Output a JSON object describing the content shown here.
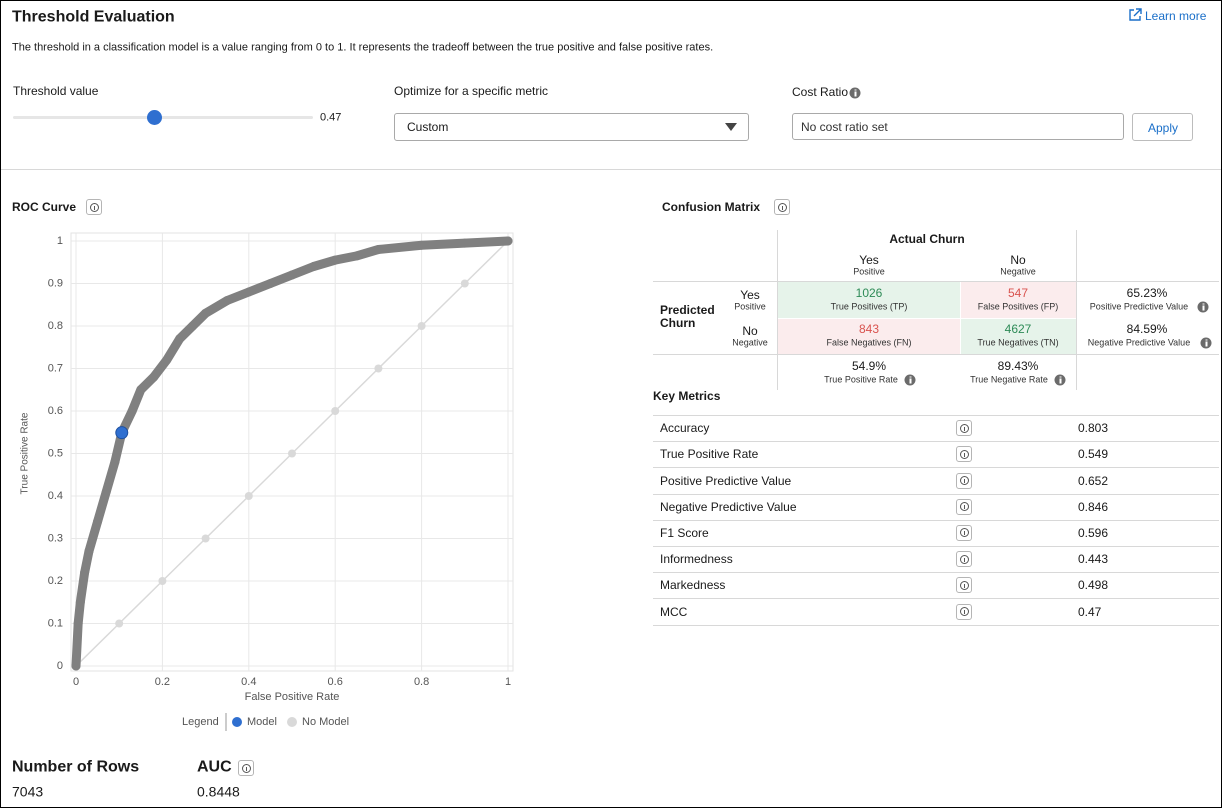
{
  "header": {
    "title": "Threshold Evaluation",
    "link": "Learn more",
    "description": "The threshold in a classification model is a value ranging from 0 to 1. It represents the tradeoff between the true positive and false positive rates."
  },
  "controls": {
    "threshold_label": "Threshold value",
    "threshold_value": 0.47,
    "slider_range": [
      0,
      1
    ],
    "metric_label": "Optimize for a specific metric",
    "metric_selected": "Custom",
    "cost_ratio_label": "Cost Ratio",
    "cost_ratio_placeholder": "No cost ratio set",
    "apply_button": "Apply"
  },
  "chart_data": {
    "type": "scatter",
    "title": "ROC Curve",
    "xlabel": "False Positive Rate",
    "ylabel": "True Positive Rate",
    "xlim": [
      0,
      1
    ],
    "ylim": [
      0,
      1
    ],
    "xticks": [
      0,
      0.2,
      0.4,
      0.6,
      0.8,
      1
    ],
    "yticks": [
      0,
      0.1,
      0.2,
      0.3,
      0.4,
      0.5,
      0.6,
      0.7,
      0.8,
      0.9,
      1
    ],
    "grid": true,
    "legend_title": "Legend",
    "legend_position": "bottom",
    "series": [
      {
        "name": "Model",
        "color": "#808080",
        "highlight_color": "#2f6fd0",
        "x": [
          0,
          0.005,
          0.01,
          0.02,
          0.03,
          0.05,
          0.07,
          0.09,
          0.106,
          0.13,
          0.15,
          0.18,
          0.21,
          0.24,
          0.27,
          0.3,
          0.35,
          0.4,
          0.45,
          0.5,
          0.55,
          0.6,
          0.65,
          0.7,
          0.8,
          0.9,
          1
        ],
        "values": [
          0,
          0.1,
          0.15,
          0.22,
          0.27,
          0.34,
          0.41,
          0.48,
          0.549,
          0.6,
          0.65,
          0.68,
          0.72,
          0.77,
          0.8,
          0.83,
          0.86,
          0.88,
          0.9,
          0.92,
          0.94,
          0.955,
          0.965,
          0.98,
          0.99,
          0.995,
          1
        ]
      },
      {
        "name": "No Model",
        "color": "#d9d9d9",
        "x": [
          0,
          0.1,
          0.2,
          0.3,
          0.4,
          0.5,
          0.6,
          0.7,
          0.8,
          0.9,
          1
        ],
        "values": [
          0,
          0.1,
          0.2,
          0.3,
          0.4,
          0.5,
          0.6,
          0.7,
          0.8,
          0.9,
          1
        ]
      }
    ],
    "highlight": {
      "x": 0.106,
      "y": 0.549
    }
  },
  "confusion_matrix": {
    "title": "Confusion Matrix",
    "actual_label": "Actual Churn",
    "predicted_label": "Predicted Churn",
    "columns": [
      {
        "label": "Yes",
        "sub": "Positive"
      },
      {
        "label": "No",
        "sub": "Negative"
      }
    ],
    "rows": [
      {
        "label": "Yes",
        "sub": "Positive"
      },
      {
        "label": "No",
        "sub": "Negative"
      }
    ],
    "cells": [
      [
        {
          "value": 1026,
          "label": "True Positives (TP)"
        },
        {
          "value": 547,
          "label": "False Positives (FP)"
        }
      ],
      [
        {
          "value": 843,
          "label": "False Negatives (FN)"
        },
        {
          "value": 4627,
          "label": "True Negatives (TN)"
        }
      ]
    ],
    "row_rates": [
      {
        "value": "65.23%",
        "label": "Positive Predictive Value"
      },
      {
        "value": "84.59%",
        "label": "Negative Predictive Value"
      }
    ],
    "column_rates": [
      {
        "value": "54.9%",
        "label": "True Positive Rate"
      },
      {
        "value": "89.43%",
        "label": "True Negative Rate"
      }
    ]
  },
  "key_metrics": {
    "title": "Key Metrics",
    "rows": [
      {
        "name": "Accuracy",
        "value": 0.803
      },
      {
        "name": "True Positive Rate",
        "value": 0.549
      },
      {
        "name": "Positive Predictive Value",
        "value": 0.652
      },
      {
        "name": "Negative Predictive Value",
        "value": 0.846
      },
      {
        "name": "F1 Score",
        "value": 0.596
      },
      {
        "name": "Informedness",
        "value": 0.443
      },
      {
        "name": "Markedness",
        "value": 0.498
      },
      {
        "name": "MCC",
        "value": 0.47
      }
    ]
  },
  "summary": {
    "rows_label": "Number of Rows",
    "rows_value": 7043,
    "auc_label": "AUC",
    "auc_value": 0.8448
  }
}
